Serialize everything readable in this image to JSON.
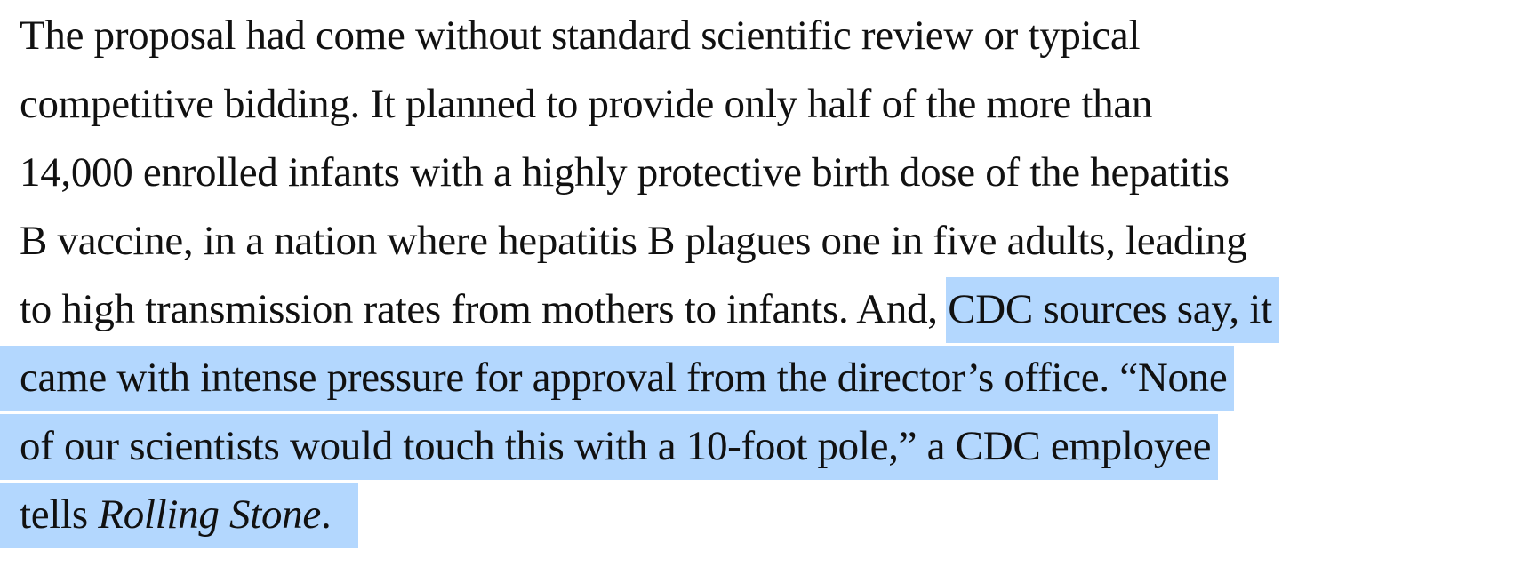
{
  "article": {
    "lines": [
      "The proposal had come without standard scientific review or typical",
      "competitive bidding. It planned to provide only half of the more than",
      "14,000 enrolled infants with a highly protective birth dose of the hepatitis",
      "B vaccine, in a nation where hepatitis B plagues one in five adults, leading",
      "to high transmission rates from mothers to infants. And, "
    ],
    "selected_lines": [
      "CDC sources say, it",
      "came with intense pressure for approval from the director’s office. “None",
      "of our scientists would touch this with a 10-foot pole,” a CDC employee",
      "tells "
    ],
    "publication": "Rolling Stone",
    "end_punctuation": ".  ",
    "selection_color": "#b3d7fe"
  }
}
